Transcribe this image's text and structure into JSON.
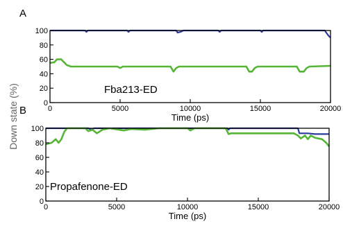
{
  "ylabel": "Down state (%)",
  "colors": {
    "blue": "#2b3a9c",
    "green": "#55b535",
    "frame": "#000000"
  },
  "chart_data": [
    {
      "type": "line",
      "panel": "A",
      "annotation": "Fba213-ED",
      "xlabel": "Time (ps)",
      "xlim": [
        0,
        20000
      ],
      "ylim": [
        0,
        100
      ],
      "x_ticks": [
        0,
        5000,
        10000,
        15000,
        20000
      ],
      "y_ticks": [
        0,
        20,
        40,
        60,
        80,
        100
      ],
      "grid": false,
      "series": [
        {
          "color": "blue",
          "points": [
            [
              0,
              100
            ],
            [
              2500,
              100
            ],
            [
              2600,
              98
            ],
            [
              2700,
              100
            ],
            [
              5500,
              100
            ],
            [
              5600,
              98
            ],
            [
              5700,
              100
            ],
            [
              9000,
              100
            ],
            [
              9100,
              97
            ],
            [
              9300,
              98
            ],
            [
              9500,
              100
            ],
            [
              12000,
              100
            ],
            [
              12100,
              98
            ],
            [
              12200,
              100
            ],
            [
              15000,
              100
            ],
            [
              15100,
              98
            ],
            [
              15200,
              100
            ],
            [
              19600,
              100
            ],
            [
              19700,
              97
            ],
            [
              19850,
              93
            ],
            [
              20000,
              90
            ]
          ]
        },
        {
          "color": "green",
          "points": [
            [
              0,
              55
            ],
            [
              300,
              56
            ],
            [
              500,
              60
            ],
            [
              800,
              60
            ],
            [
              1000,
              56
            ],
            [
              1200,
              52
            ],
            [
              1500,
              50
            ],
            [
              4800,
              50
            ],
            [
              5000,
              48
            ],
            [
              5200,
              50
            ],
            [
              8600,
              50
            ],
            [
              8800,
              43
            ],
            [
              9000,
              48
            ],
            [
              9200,
              50
            ],
            [
              14000,
              50
            ],
            [
              14200,
              43
            ],
            [
              14400,
              43
            ],
            [
              14600,
              48
            ],
            [
              14800,
              50
            ],
            [
              17600,
              50
            ],
            [
              17800,
              43
            ],
            [
              18100,
              43
            ],
            [
              18300,
              48
            ],
            [
              18500,
              50
            ],
            [
              20000,
              51
            ]
          ]
        }
      ]
    },
    {
      "type": "line",
      "panel": "B",
      "annotation": "Propafenone-ED",
      "xlabel": "Time (ps)",
      "xlim": [
        0,
        20000
      ],
      "ylim": [
        0,
        100
      ],
      "x_ticks": [
        0,
        5000,
        10000,
        15000,
        20000
      ],
      "y_ticks": [
        0,
        20,
        40,
        60,
        80,
        100
      ],
      "grid": false,
      "series": [
        {
          "color": "blue",
          "points": [
            [
              0,
              100
            ],
            [
              1000,
              100
            ],
            [
              1500,
              100
            ],
            [
              3000,
              100
            ],
            [
              3200,
              98
            ],
            [
              3400,
              100
            ],
            [
              12800,
              100
            ],
            [
              12900,
              98
            ],
            [
              13000,
              100
            ],
            [
              17800,
              100
            ],
            [
              17900,
              93
            ],
            [
              18500,
              93
            ],
            [
              19000,
              92
            ],
            [
              20000,
              92
            ]
          ]
        },
        {
          "color": "green",
          "points": [
            [
              0,
              78
            ],
            [
              400,
              80
            ],
            [
              700,
              85
            ],
            [
              900,
              80
            ],
            [
              1100,
              85
            ],
            [
              1300,
              95
            ],
            [
              1500,
              100
            ],
            [
              2800,
              100
            ],
            [
              3000,
              96
            ],
            [
              3300,
              98
            ],
            [
              3600,
              93
            ],
            [
              4000,
              98
            ],
            [
              4500,
              100
            ],
            [
              5500,
              97
            ],
            [
              6000,
              99
            ],
            [
              7000,
              98
            ],
            [
              8000,
              100
            ],
            [
              10000,
              100
            ],
            [
              10200,
              97
            ],
            [
              10500,
              100
            ],
            [
              12700,
              100
            ],
            [
              12900,
              92
            ],
            [
              13100,
              93
            ],
            [
              16500,
              93
            ],
            [
              17500,
              93
            ],
            [
              17800,
              90
            ],
            [
              18000,
              86
            ],
            [
              18300,
              90
            ],
            [
              18500,
              85
            ],
            [
              18700,
              90
            ],
            [
              19000,
              87
            ],
            [
              19500,
              85
            ],
            [
              19800,
              80
            ],
            [
              20000,
              75
            ]
          ]
        }
      ]
    }
  ]
}
